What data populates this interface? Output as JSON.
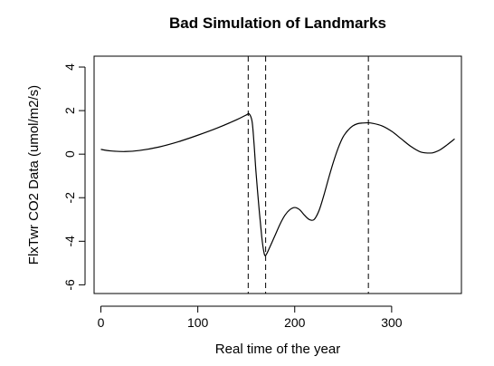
{
  "chart_data": {
    "type": "line",
    "title": "Bad Simulation of Landmarks",
    "xlabel": "Real time of the year",
    "ylabel": "FlxTwr CO2 Data (umol/m2/s)",
    "xlim": [
      -7,
      372
    ],
    "ylim": [
      -6.4,
      4.5
    ],
    "x_ticks": [
      0,
      100,
      200,
      300
    ],
    "y_ticks": [
      -6,
      -4,
      -2,
      0,
      2,
      4
    ],
    "grid": false,
    "vertical_lines": [
      152,
      170,
      276
    ],
    "series": [
      {
        "x": [
          0,
          10,
          25,
          40,
          60,
          80,
          100,
          120,
          140,
          150,
          153,
          156,
          158,
          160,
          163,
          166,
          168,
          170,
          175,
          180,
          185,
          190,
          195,
          200,
          205,
          210,
          215,
          220,
          225,
          230,
          235,
          240,
          245,
          250,
          255,
          260,
          265,
          270,
          275,
          280,
          290,
          300,
          310,
          320,
          330,
          340,
          345,
          350,
          357,
          365
        ],
        "y": [
          0.22,
          0.15,
          0.12,
          0.17,
          0.33,
          0.57,
          0.87,
          1.2,
          1.58,
          1.8,
          1.85,
          1.5,
          0.5,
          -0.8,
          -2.4,
          -3.8,
          -4.45,
          -4.65,
          -4.2,
          -3.7,
          -3.2,
          -2.8,
          -2.55,
          -2.45,
          -2.55,
          -2.8,
          -3.0,
          -3.0,
          -2.6,
          -1.9,
          -1.1,
          -0.35,
          0.3,
          0.8,
          1.1,
          1.3,
          1.4,
          1.43,
          1.44,
          1.42,
          1.3,
          1.05,
          0.7,
          0.35,
          0.1,
          0.05,
          0.1,
          0.2,
          0.42,
          0.7
        ]
      }
    ]
  }
}
